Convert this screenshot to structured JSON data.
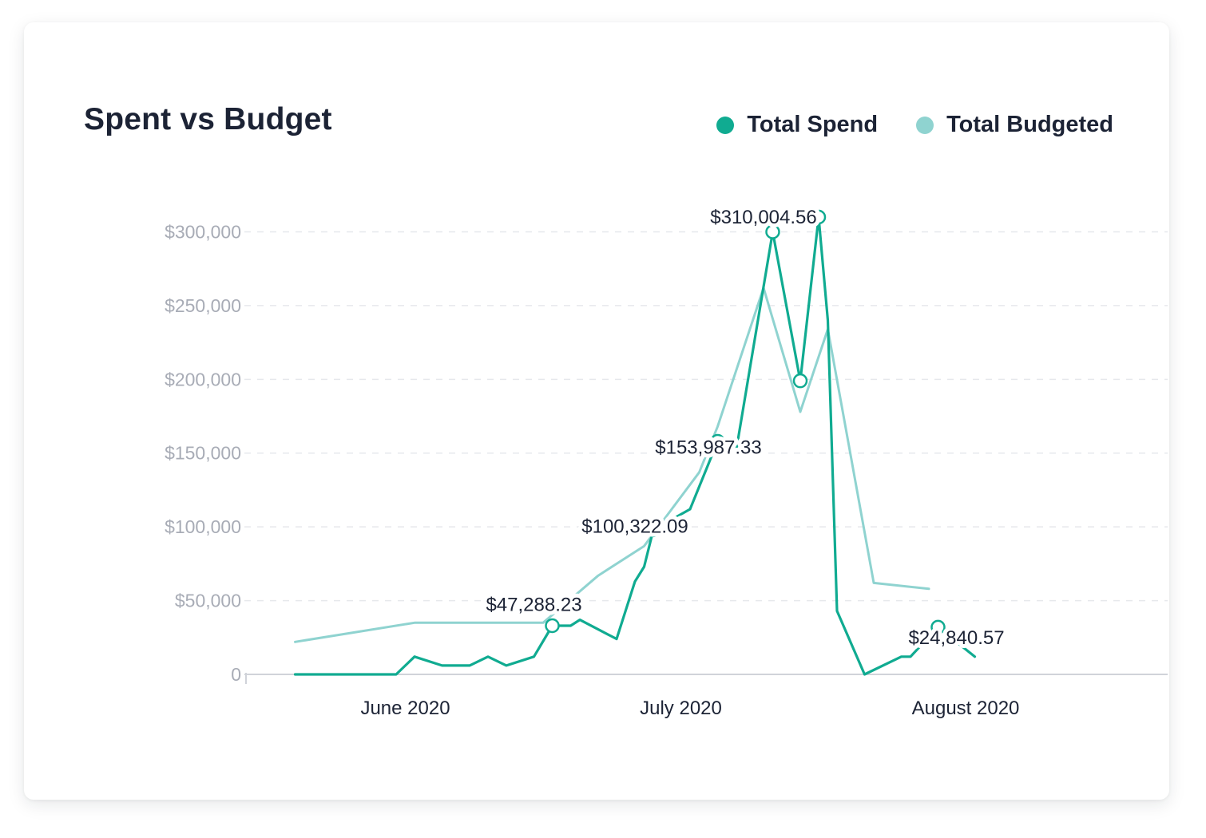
{
  "colors": {
    "spend": "#10ab91",
    "budget": "#8fd3d0",
    "grid": "#e6e8ec",
    "axis": "#d0d3d9",
    "text": "#1c2335",
    "tick": "#a8acb6"
  },
  "legend": {
    "spend_label": "Total Spend",
    "budget_label": "Total Budgeted"
  },
  "chart_data": {
    "type": "line",
    "title": "Spent vs Budget",
    "legend_position": "top-right",
    "grid": "horizontal dashed",
    "x_unit": "date",
    "xlim": [
      "2020-05-15",
      "2020-08-23"
    ],
    "ylim": [
      0,
      310000
    ],
    "yticks": [
      0,
      50000,
      100000,
      150000,
      200000,
      250000,
      300000
    ],
    "ytick_labels": [
      "0",
      "$50,000",
      "$100,000",
      "$150,000",
      "$200,000",
      "$250,000",
      "$300,000"
    ],
    "xtick_dates": [
      "2020-06-01",
      "2020-07-01",
      "2020-08-01"
    ],
    "xtick_labels": [
      "June 2020",
      "July 2020",
      "August 2020"
    ],
    "series": [
      {
        "name": "Total Spend",
        "color": "#10ab91",
        "points": [
          [
            "2020-05-20",
            0
          ],
          [
            "2020-05-31",
            0
          ],
          [
            "2020-06-02",
            12000
          ],
          [
            "2020-06-05",
            6000
          ],
          [
            "2020-06-08",
            6000
          ],
          [
            "2020-06-10",
            12000
          ],
          [
            "2020-06-12",
            6000
          ],
          [
            "2020-06-15",
            12000
          ],
          [
            "2020-06-17",
            33000
          ],
          [
            "2020-06-19",
            33000
          ],
          [
            "2020-06-20",
            37000
          ],
          [
            "2020-06-24",
            24000
          ],
          [
            "2020-06-26",
            63000
          ],
          [
            "2020-06-27",
            73000
          ],
          [
            "2020-06-28",
            98000
          ],
          [
            "2020-07-02",
            112000
          ],
          [
            "2020-07-05",
            158000
          ],
          [
            "2020-07-07",
            151000
          ],
          [
            "2020-07-11",
            300000
          ],
          [
            "2020-07-14",
            199000
          ],
          [
            "2020-07-16",
            310000
          ],
          [
            "2020-07-17",
            240000
          ],
          [
            "2020-07-18",
            43000
          ],
          [
            "2020-07-21",
            0
          ],
          [
            "2020-07-25",
            12000
          ],
          [
            "2020-07-26",
            12000
          ],
          [
            "2020-07-29",
            32000
          ],
          [
            "2020-08-02",
            12000
          ]
        ]
      },
      {
        "name": "Total Budgeted",
        "color": "#8fd3d0",
        "points": [
          [
            "2020-05-20",
            22000
          ],
          [
            "2020-06-02",
            35000
          ],
          [
            "2020-06-12",
            35000
          ],
          [
            "2020-06-16",
            35000
          ],
          [
            "2020-06-22",
            67000
          ],
          [
            "2020-06-27",
            87000
          ],
          [
            "2020-06-30",
            112000
          ],
          [
            "2020-07-03",
            137000
          ],
          [
            "2020-07-05",
            168000
          ],
          [
            "2020-07-10",
            262000
          ],
          [
            "2020-07-14",
            178000
          ],
          [
            "2020-07-17",
            234000
          ],
          [
            "2020-07-22",
            62000
          ],
          [
            "2020-07-28",
            58000
          ]
        ]
      }
    ],
    "markers": [
      {
        "series": 0,
        "date": "2020-06-17",
        "value": 33000
      },
      {
        "series": 0,
        "date": "2020-06-28",
        "value": 98000
      },
      {
        "series": 0,
        "date": "2020-07-05",
        "value": 158000
      },
      {
        "series": 0,
        "date": "2020-07-11",
        "value": 300000
      },
      {
        "series": 0,
        "date": "2020-07-14",
        "value": 199000
      },
      {
        "series": 0,
        "date": "2020-07-16",
        "value": 310000
      },
      {
        "series": 0,
        "date": "2020-07-29",
        "value": 32000
      }
    ],
    "annotations": [
      {
        "text": "$47,288.23",
        "date": "2020-06-15",
        "value": 47288.23
      },
      {
        "text": "$100,322.09",
        "date": "2020-06-26",
        "value": 100322.09
      },
      {
        "text": "$153,987.33",
        "date": "2020-07-04",
        "value": 153987.33
      },
      {
        "text": "$310,004.56",
        "date": "2020-07-10",
        "value": 310004.56
      },
      {
        "text": "$24,840.57",
        "date": "2020-07-31",
        "value": 24840.57
      }
    ]
  }
}
